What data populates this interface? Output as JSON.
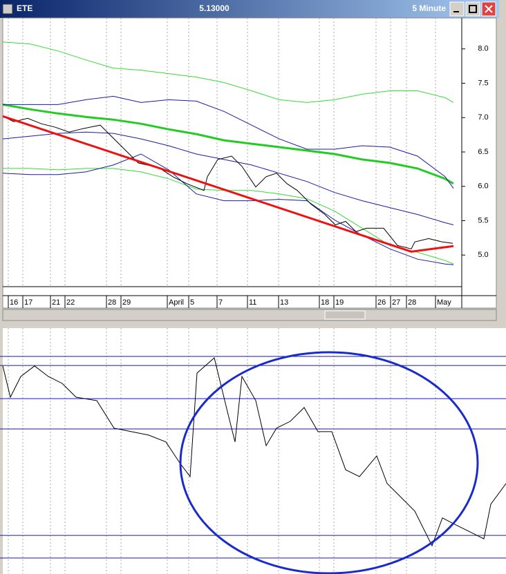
{
  "window": {
    "symbol": "ETE",
    "price": "5.13000",
    "interval": "5 Minute"
  },
  "chart_data": [
    {
      "type": "line",
      "x": [
        0,
        10,
        20,
        30,
        40,
        50,
        60,
        70,
        80,
        90,
        100,
        110,
        120,
        130,
        140,
        150,
        160,
        163
      ],
      "xlim": [
        0,
        166
      ],
      "xticks": [
        {
          "value": 2,
          "label": "16"
        },
        {
          "value": 7.25,
          "label": "17"
        },
        {
          "value": 17.25,
          "label": "21"
        },
        {
          "value": 22.5,
          "label": "22"
        },
        {
          "value": 37.5,
          "label": "28"
        },
        {
          "value": 42.75,
          "label": "29"
        },
        {
          "value": 59.5,
          "label": "April"
        },
        {
          "value": 67.25,
          "label": "5"
        },
        {
          "value": 77.5,
          "label": "7"
        },
        {
          "value": 88.5,
          "label": "11"
        },
        {
          "value": 99.75,
          "label": "13"
        },
        {
          "value": 114.5,
          "label": "18"
        },
        {
          "value": 119.75,
          "label": "19"
        },
        {
          "value": 135,
          "label": "26"
        },
        {
          "value": 140.25,
          "label": "27"
        },
        {
          "value": 146,
          "label": "28"
        },
        {
          "value": 156.5,
          "label": "May"
        }
      ],
      "ylim": [
        4.54,
        8.45
      ],
      "yticks": [
        {
          "value": 5,
          "label": "5.0"
        },
        {
          "value": 5.5,
          "label": "5.5"
        },
        {
          "value": 6,
          "label": "6.0"
        },
        {
          "value": 6.5,
          "label": "6.5"
        },
        {
          "value": 7,
          "label": "7.0"
        },
        {
          "value": 7.5,
          "label": "7.5"
        },
        {
          "value": 8,
          "label": "8.0"
        }
      ],
      "series": [
        {
          "color": "#33dd33",
          "width": 1,
          "values": [
            8.1,
            8.07,
            7.97,
            7.84,
            7.72,
            7.69,
            7.64,
            7.59,
            7.51,
            7.39,
            7.26,
            7.22,
            7.26,
            7.34,
            7.39,
            7.39,
            7.29,
            7.22
          ]
        },
        {
          "color": "#22cc22",
          "width": 3,
          "values": [
            7.19,
            7.12,
            7.06,
            7.01,
            6.97,
            6.91,
            6.83,
            6.76,
            6.67,
            6.62,
            6.57,
            6.52,
            6.47,
            6.39,
            6.34,
            6.26,
            6.11,
            6.04
          ]
        },
        {
          "color": "#33dd33",
          "width": 1,
          "values": [
            6.26,
            6.26,
            6.24,
            6.26,
            6.26,
            6.21,
            6.11,
            5.96,
            5.94,
            5.94,
            5.89,
            5.82,
            5.64,
            5.39,
            5.14,
            5.04,
            4.92,
            4.87
          ]
        },
        {
          "color": "#1a1aaa",
          "width": 1,
          "values": [
            7.19,
            7.19,
            7.19,
            7.26,
            7.31,
            7.22,
            7.26,
            7.24,
            7.09,
            6.89,
            6.69,
            6.54,
            6.54,
            6.59,
            6.57,
            6.44,
            6.14,
            5.97
          ]
        },
        {
          "color": "#1a1aaa",
          "width": 1,
          "values": [
            6.69,
            6.73,
            6.77,
            6.79,
            6.77,
            6.69,
            6.59,
            6.47,
            6.39,
            6.31,
            6.19,
            6.07,
            5.91,
            5.79,
            5.69,
            5.59,
            5.47,
            5.44
          ]
        },
        {
          "color": "#1a1aaa",
          "width": 1,
          "values": [
            6.19,
            6.17,
            6.17,
            6.21,
            6.31,
            6.47,
            6.24,
            5.89,
            5.79,
            5.79,
            5.81,
            5.79,
            5.51,
            5.29,
            5.09,
            4.94,
            4.87,
            4.86
          ]
        },
        {
          "color": "#000000",
          "width": 1,
          "x": [
            0,
            4,
            9,
            14,
            19,
            24,
            29,
            35.25,
            39,
            44,
            49,
            56.5,
            61.5,
            66.5,
            72.75,
            74,
            77.75,
            82.75,
            86.5,
            91.5,
            95.25,
            99,
            102.75,
            106.5,
            111.5,
            116.5,
            120.25,
            124,
            127.75,
            131.5,
            137.75,
            142.75,
            147.75,
            149,
            154,
            159,
            162.75
          ],
          "values": [
            7.02,
            6.94,
            6.99,
            6.91,
            6.86,
            6.79,
            6.84,
            6.89,
            6.74,
            6.54,
            6.34,
            6.27,
            6.14,
            6.04,
            5.94,
            6.14,
            6.39,
            6.44,
            6.29,
            5.99,
            6.14,
            6.19,
            6.04,
            5.94,
            5.74,
            5.59,
            5.44,
            5.49,
            5.34,
            5.39,
            5.39,
            5.14,
            5.09,
            5.19,
            5.24,
            5.19,
            5.17
          ]
        },
        {
          "color": "#ee1111",
          "width": 3,
          "x": [
            0,
            147.75,
            163
          ],
          "values": [
            7.02,
            5.05,
            5.13
          ]
        }
      ]
    },
    {
      "type": "line",
      "x": [
        0,
        2.75,
        6.5,
        11.5,
        16.5,
        21.5,
        26.5,
        34,
        40.25,
        46.5,
        52.75,
        59,
        64,
        67.75,
        70.25,
        76.5,
        81.5,
        84,
        86.5,
        91.5,
        95.25,
        99,
        104,
        109,
        114,
        119,
        124,
        129,
        135.25,
        139,
        144,
        149,
        155.25,
        159,
        164,
        169,
        174,
        176.5,
        182
      ],
      "xlim": [
        0,
        182
      ],
      "ylim": [
        0,
        100
      ],
      "grid_lines": [
        88.5,
        84.8,
        71.3,
        59,
        15.7,
        6.5
      ],
      "series": [
        {
          "color": "#000000",
          "width": 1,
          "values": [
            84.6,
            71.9,
            80.3,
            84.6,
            80.3,
            77.5,
            71.9,
            70.5,
            59.3,
            57.9,
            56.5,
            53.7,
            45.2,
            39.6,
            81.7,
            87.9,
            64.9,
            53.7,
            80.3,
            70.5,
            52.2,
            59.3,
            62.1,
            67.7,
            57.9,
            57.9,
            42.4,
            39.6,
            48,
            36.8,
            31.2,
            25.6,
            11.5,
            22.8,
            19.9,
            17.1,
            14.3,
            28.4,
            36.8
          ]
        }
      ]
    }
  ]
}
